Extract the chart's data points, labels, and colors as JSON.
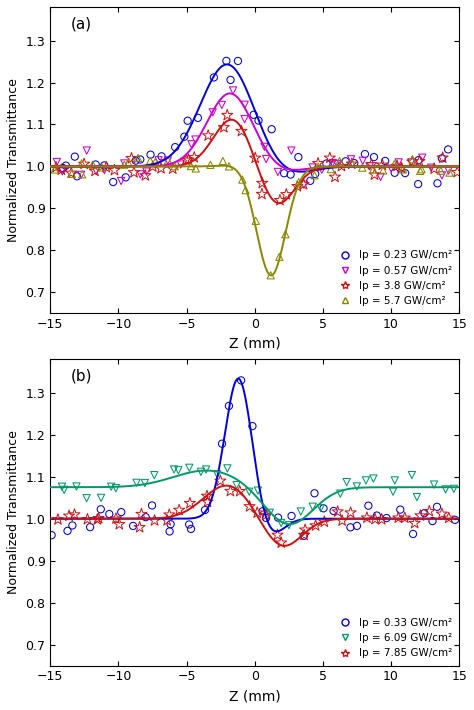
{
  "fig_width": 4.74,
  "fig_height": 7.1,
  "dpi": 100,
  "xlim": [
    -15,
    15
  ],
  "ylim_a": [
    0.65,
    1.38
  ],
  "ylim_b": [
    0.65,
    1.38
  ],
  "yticks": [
    0.7,
    0.8,
    0.9,
    1.0,
    1.1,
    1.2,
    1.3
  ],
  "xticks": [
    -15,
    -10,
    -5,
    0,
    5,
    10,
    15
  ],
  "xlabel": "Z (mm)",
  "ylabel": "Normalized Transmittance",
  "panel_a_label": "(a)",
  "panel_b_label": "(b)",
  "bg_color": "#f0f0f0",
  "panel_a": {
    "series": [
      {
        "label": "Ip = 0.23 GW/cm²",
        "color": "#0000dd",
        "marker": "o",
        "ms": 3.5,
        "zpeak": -2.0,
        "ypeak": 1.245,
        "wpeak": 2.8,
        "zvalley": 2.0,
        "yvalley": 0.975,
        "wvalley": 2.5,
        "base": 1.0,
        "noise": 0.022,
        "npts": 42
      },
      {
        "label": "Ip = 0.57 GW/cm²",
        "color": "#cc00cc",
        "marker": "v",
        "ms": 3.5,
        "zpeak": -1.8,
        "ypeak": 1.175,
        "wpeak": 2.4,
        "zvalley": 1.8,
        "yvalley": 0.985,
        "wvalley": 2.2,
        "base": 1.0,
        "noise": 0.018,
        "npts": 40
      },
      {
        "label": "Ip = 3.8 GW/cm²",
        "color": "#cc1111",
        "marker": "*",
        "ms": 4.5,
        "zpeak": -1.6,
        "ypeak": 1.115,
        "wpeak": 2.0,
        "zvalley": 1.6,
        "yvalley": 0.905,
        "wvalley": 1.8,
        "base": 1.0,
        "noise": 0.013,
        "npts": 42
      },
      {
        "label": "Ip = 5.7 GW/cm²",
        "color": "#888800",
        "marker": "^",
        "ms": 3.5,
        "zpeak": -1.2,
        "ypeak": 1.005,
        "wpeak": 1.6,
        "zvalley": 1.2,
        "yvalley": 0.74,
        "wvalley": 1.5,
        "base": 1.0,
        "noise": 0.01,
        "npts": 40
      }
    ]
  },
  "panel_b": {
    "series": [
      {
        "label": "Ip = 0.33 GW/cm²",
        "color": "#0000dd",
        "marker": "o",
        "ms": 3.5,
        "zpeak": -1.2,
        "ypeak": 1.335,
        "wpeak": 1.4,
        "zvalley": 1.2,
        "yvalley": 0.96,
        "wvalley": 1.3,
        "base": 1.0,
        "noise": 0.025,
        "npts": 38
      },
      {
        "label": "Ip = 6.09 GW/cm²",
        "color": "#009966",
        "marker": "v",
        "ms": 3.5,
        "zpeak": -3.5,
        "ypeak": 1.115,
        "wpeak": 3.5,
        "zvalley": 2.5,
        "yvalley": 0.985,
        "wvalley": 2.5,
        "base": 1.075,
        "noise": 0.013,
        "npts": 38
      },
      {
        "label": "Ip = 7.85 GW/cm²",
        "color": "#cc1111",
        "marker": "*",
        "ms": 4.5,
        "zpeak": -2.0,
        "ypeak": 1.08,
        "wpeak": 2.5,
        "zvalley": 2.0,
        "yvalley": 0.93,
        "wvalley": 2.0,
        "base": 1.0,
        "noise": 0.012,
        "npts": 42
      }
    ]
  }
}
